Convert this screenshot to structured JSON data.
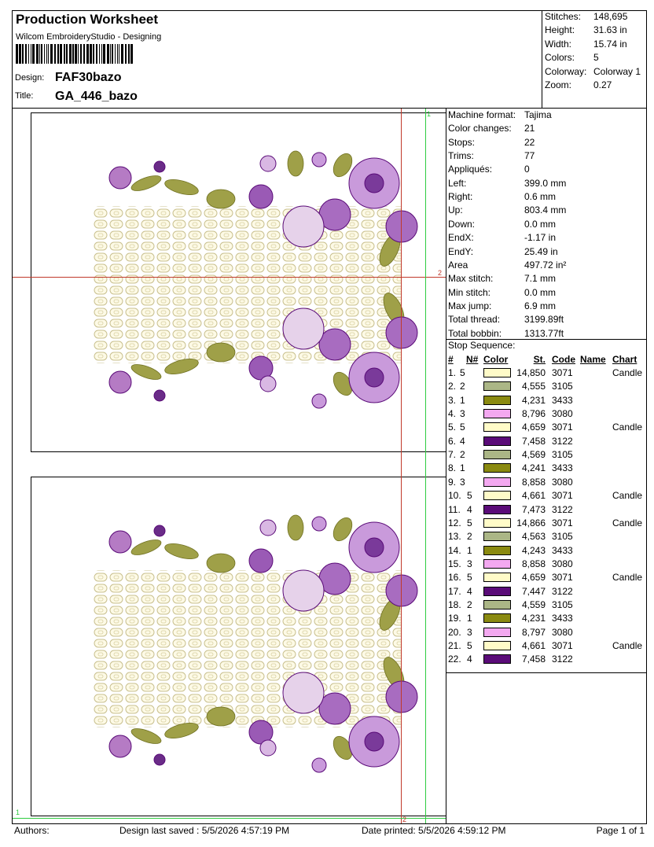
{
  "header": {
    "title": "Production Worksheet",
    "subtitle": "Wilcom EmbroideryStudio - Designing",
    "design_label": "Design:",
    "design": "FAF30bazo",
    "title_label": "Title:",
    "title_value": "GA_446_bazo"
  },
  "summary": [
    [
      "Stitches:",
      "148,695"
    ],
    [
      "Height:",
      "31.63 in"
    ],
    [
      "Width:",
      "15.74 in"
    ],
    [
      "Colors:",
      "5"
    ],
    [
      "Colorway:",
      "Colorway 1"
    ],
    [
      "Zoom:",
      "0.27"
    ]
  ],
  "machine": [
    [
      "Machine format:",
      "Tajima"
    ],
    [
      "Color changes:",
      "21"
    ],
    [
      "Stops:",
      "22"
    ],
    [
      "Trims:",
      "77"
    ],
    [
      "Appliqués:",
      "0"
    ],
    [
      "Left:",
      "399.0 mm"
    ],
    [
      "Right:",
      "0.6 mm"
    ],
    [
      "Up:",
      "803.4 mm"
    ],
    [
      "Down:",
      "0.0 mm"
    ],
    [
      "EndX:",
      "-1.17 in"
    ],
    [
      "EndY:",
      "25.49 in"
    ],
    [
      "Area",
      "497.72 in²"
    ],
    [
      "Max stitch:",
      "7.1 mm"
    ],
    [
      "Min stitch:",
      "0.0 mm"
    ],
    [
      "Max jump:",
      "6.9 mm"
    ],
    [
      "Total thread:",
      "3199.89ft"
    ],
    [
      "Total bobbin:",
      "1313.77ft"
    ]
  ],
  "stop_sequence": {
    "title": "Stop Sequence:",
    "columns": [
      "#",
      "N#",
      "Color",
      "St.",
      "Code",
      "Name",
      "Chart"
    ],
    "rows": [
      {
        "num": "1.",
        "n": "5",
        "color": "#fffbc8",
        "st": "14,850",
        "code": "3071",
        "chart": "Candle"
      },
      {
        "num": "2.",
        "n": "2",
        "color": "#abb686",
        "st": "4,555",
        "code": "3105"
      },
      {
        "num": "3.",
        "n": "1",
        "color": "#8a8a10",
        "st": "4,231",
        "code": "3433"
      },
      {
        "num": "4.",
        "n": "3",
        "color": "#f3a8f0",
        "st": "8,796",
        "code": "3080"
      },
      {
        "num": "5.",
        "n": "5",
        "color": "#fffbc8",
        "st": "4,659",
        "code": "3071",
        "chart": "Candle"
      },
      {
        "num": "6.",
        "n": "4",
        "color": "#5a0b78",
        "st": "7,458",
        "code": "3122"
      },
      {
        "num": "7.",
        "n": "2",
        "color": "#abb686",
        "st": "4,569",
        "code": "3105"
      },
      {
        "num": "8.",
        "n": "1",
        "color": "#8a8a10",
        "st": "4,241",
        "code": "3433"
      },
      {
        "num": "9.",
        "n": "3",
        "color": "#f3a8f0",
        "st": "8,858",
        "code": "3080"
      },
      {
        "num": "10.",
        "n": "5",
        "color": "#fffbc8",
        "st": "4,661",
        "code": "3071",
        "chart": "Candle"
      },
      {
        "num": "11.",
        "n": "4",
        "color": "#5a0b78",
        "st": "7,473",
        "code": "3122"
      },
      {
        "num": "12.",
        "n": "5",
        "color": "#fffbc8",
        "st": "14,866",
        "code": "3071",
        "chart": "Candle"
      },
      {
        "num": "13.",
        "n": "2",
        "color": "#abb686",
        "st": "4,563",
        "code": "3105"
      },
      {
        "num": "14.",
        "n": "1",
        "color": "#8a8a10",
        "st": "4,243",
        "code": "3433"
      },
      {
        "num": "15.",
        "n": "3",
        "color": "#f3a8f0",
        "st": "8,858",
        "code": "3080"
      },
      {
        "num": "16.",
        "n": "5",
        "color": "#fffbc8",
        "st": "4,659",
        "code": "3071",
        "chart": "Candle"
      },
      {
        "num": "17.",
        "n": "4",
        "color": "#5a0b78",
        "st": "7,447",
        "code": "3122"
      },
      {
        "num": "18.",
        "n": "2",
        "color": "#abb686",
        "st": "4,559",
        "code": "3105"
      },
      {
        "num": "19.",
        "n": "1",
        "color": "#8a8a10",
        "st": "4,231",
        "code": "3433"
      },
      {
        "num": "20.",
        "n": "3",
        "color": "#f3a8f0",
        "st": "8,797",
        "code": "3080"
      },
      {
        "num": "21.",
        "n": "5",
        "color": "#fffbc8",
        "st": "4,661",
        "code": "3071",
        "chart": "Candle"
      },
      {
        "num": "22.",
        "n": "4",
        "color": "#5a0b78",
        "st": "7,458",
        "code": "3122"
      }
    ]
  },
  "guides": {
    "green_top": "1",
    "red_right": "2",
    "green_bottom": "1",
    "red_bottom": "2"
  },
  "footer": {
    "authors": "Authors:",
    "saved": "Design last saved : 5/5/2026 4:57:19 PM",
    "printed": "Date printed: 5/5/2026 4:59:12 PM",
    "page": "Page 1 of 1"
  }
}
